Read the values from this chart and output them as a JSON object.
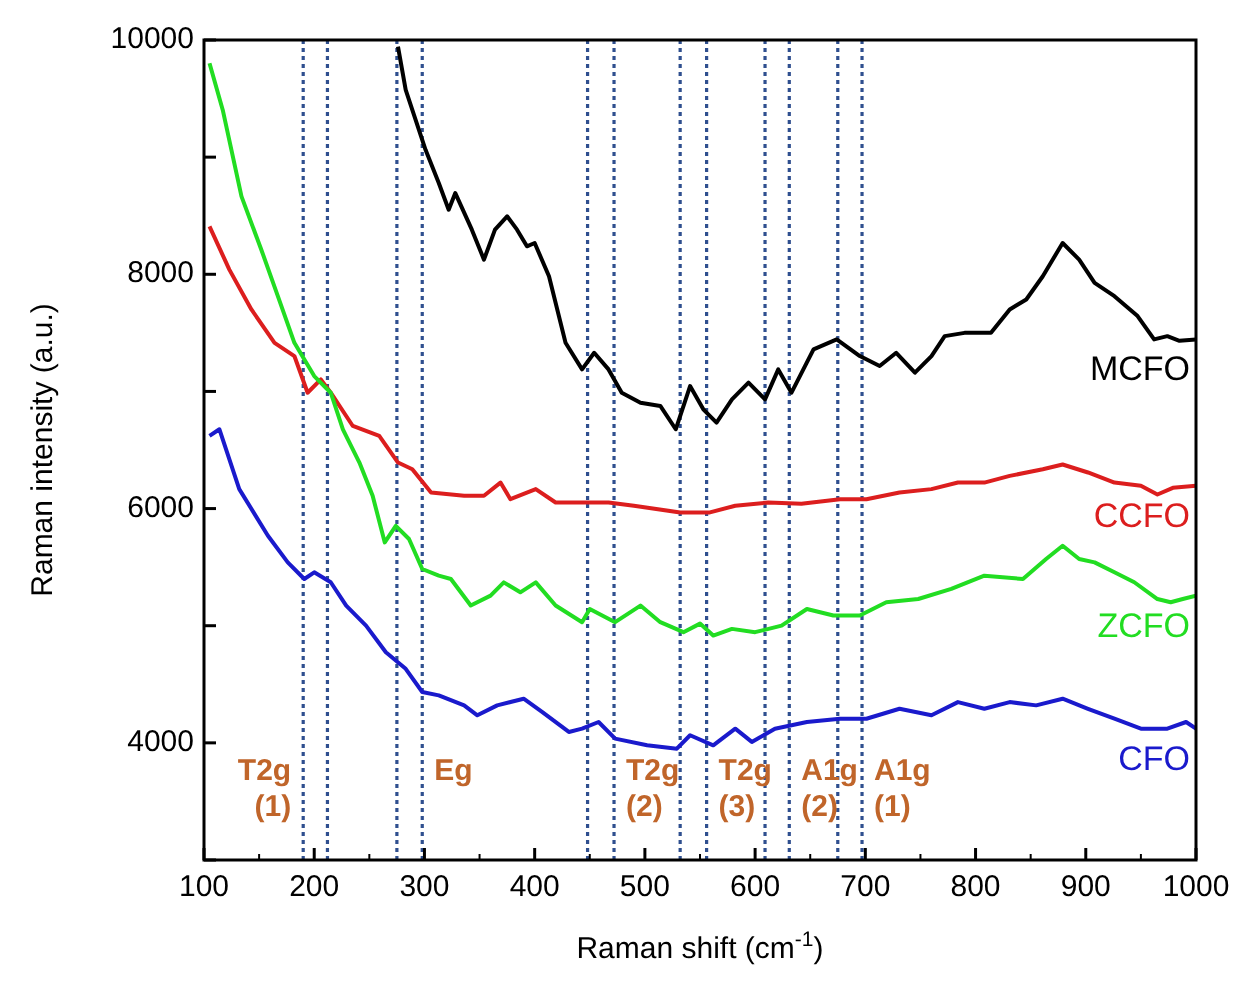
{
  "chart_data": {
    "type": "line",
    "xlabel": "Raman shift (cm$^{-1}$)",
    "ylabel": "Raman intensity (a.u.)",
    "xlim": [
      100,
      1000
    ],
    "xticks": [
      100,
      200,
      300,
      400,
      500,
      600,
      700,
      800,
      900,
      1000
    ],
    "ylim": [
      3000,
      10000
    ],
    "yticks": [
      {
        "value": 3000,
        "label": null
      },
      4000,
      {
        "value": 5000,
        "label": null
      },
      6000,
      {
        "value": 7000,
        "label": null
      },
      8000,
      {
        "value": 9000,
        "label": null
      },
      10000
    ],
    "grid": false,
    "legend": false,
    "marker": "none",
    "line_style": "solid",
    "series": [
      {
        "name": "MCFO",
        "color": "#000000",
        "x": [
          276,
          283,
          301,
          313,
          322,
          328,
          343,
          354,
          364,
          375,
          384,
          393,
          400,
          413,
          428,
          443,
          454,
          467,
          479,
          496,
          514,
          528,
          541,
          553,
          565,
          579,
          594,
          609,
          621,
          633,
          653,
          674,
          695,
          713,
          728,
          745,
          760,
          772,
          790,
          814,
          831,
          846,
          861,
          879,
          894,
          908,
          926,
          947,
          962,
          974,
          985,
          1000
        ],
        "values": [
          9943,
          9574,
          9063,
          8779,
          8551,
          8693,
          8381,
          8125,
          8381,
          8495,
          8381,
          8239,
          8267,
          7983,
          7415,
          7188,
          7330,
          7188,
          6989,
          6904,
          6876,
          6677,
          7046,
          6847,
          6734,
          6932,
          7075,
          6932,
          7188,
          6989,
          7359,
          7444,
          7302,
          7217,
          7330,
          7160,
          7302,
          7472,
          7500,
          7500,
          7700,
          7785,
          7983,
          8267,
          8125,
          7927,
          7813,
          7643,
          7444,
          7472,
          7432,
          7444
        ]
      },
      {
        "name": "CCFO",
        "color": "#dc1e1e",
        "x": [
          105,
          123,
          143,
          164,
          182,
          194,
          206,
          215,
          235,
          259,
          276,
          289,
          306,
          336,
          354,
          369,
          378,
          401,
          419,
          449,
          467,
          490,
          532,
          559,
          582,
          612,
          642,
          677,
          701,
          731,
          760,
          784,
          808,
          831,
          861,
          879,
          902,
          926,
          950,
          965,
          979,
          1000
        ],
        "values": [
          8409,
          8040,
          7700,
          7415,
          7302,
          6989,
          7103,
          6989,
          6705,
          6620,
          6393,
          6336,
          6137,
          6109,
          6109,
          6222,
          6080,
          6166,
          6052,
          6052,
          6052,
          6024,
          5967,
          5967,
          6024,
          6052,
          6041,
          6080,
          6080,
          6137,
          6166,
          6222,
          6222,
          6279,
          6336,
          6376,
          6308,
          6222,
          6194,
          6120,
          6177,
          6194
        ]
      },
      {
        "name": "ZCFO",
        "color": "#22dd22",
        "x": [
          105,
          117,
          134,
          152,
          167,
          182,
          200,
          215,
          226,
          241,
          253,
          264,
          274,
          286,
          298,
          313,
          324,
          342,
          360,
          372,
          387,
          401,
          419,
          443,
          450,
          473,
          496,
          514,
          535,
          550,
          562,
          579,
          600,
          624,
          647,
          671,
          695,
          719,
          748,
          778,
          808,
          843,
          864,
          879,
          894,
          908,
          926,
          944,
          965,
          977,
          988,
          1000
        ],
        "values": [
          9801,
          9403,
          8665,
          8210,
          7813,
          7415,
          7131,
          6989,
          6677,
          6393,
          6109,
          5711,
          5853,
          5740,
          5484,
          5427,
          5399,
          5172,
          5257,
          5370,
          5285,
          5370,
          5172,
          5030,
          5143,
          5030,
          5172,
          5030,
          4945,
          5018,
          4916,
          4973,
          4945,
          5001,
          5143,
          5087,
          5087,
          5200,
          5228,
          5314,
          5427,
          5399,
          5569,
          5683,
          5569,
          5541,
          5456,
          5371,
          5228,
          5200,
          5228,
          5257
        ]
      },
      {
        "name": "CFO",
        "color": "#1a1acc",
        "x": [
          105,
          114,
          132,
          158,
          176,
          191,
          200,
          215,
          229,
          247,
          265,
          283,
          298,
          313,
          336,
          348,
          366,
          390,
          407,
          431,
          443,
          458,
          473,
          502,
          529,
          541,
          562,
          582,
          597,
          618,
          647,
          677,
          701,
          731,
          760,
          784,
          808,
          831,
          855,
          879,
          902,
          926,
          950,
          974,
          991,
          1000
        ],
        "values": [
          6620,
          6677,
          6166,
          5768,
          5541,
          5399,
          5456,
          5371,
          5172,
          5001,
          4774,
          4632,
          4434,
          4405,
          4320,
          4235,
          4320,
          4377,
          4263,
          4093,
          4121,
          4178,
          4036,
          3979,
          3950,
          4065,
          3979,
          4121,
          4008,
          4121,
          4178,
          4206,
          4206,
          4291,
          4235,
          4348,
          4291,
          4348,
          4320,
          4377,
          4291,
          4206,
          4121,
          4121,
          4178,
          4121
        ]
      }
    ],
    "ref_lines": [
      {
        "axis": "x",
        "value": 190,
        "label": "T2g (1)",
        "color": "#2f4f8f",
        "line_style": "dotted"
      },
      {
        "axis": "x",
        "value": 212,
        "color": "#2f4f8f",
        "line_style": "dotted"
      },
      {
        "axis": "x",
        "value": 275,
        "color": "#2f4f8f",
        "line_style": "dotted"
      },
      {
        "axis": "x",
        "value": 298,
        "label": "Eg",
        "color": "#2f4f8f",
        "line_style": "dotted"
      },
      {
        "axis": "x",
        "value": 448,
        "color": "#2f4f8f",
        "line_style": "dotted"
      },
      {
        "axis": "x",
        "value": 472,
        "label": "T2g (2)",
        "color": "#2f4f8f",
        "line_style": "dotted"
      },
      {
        "axis": "x",
        "value": 532,
        "color": "#2f4f8f",
        "line_style": "dotted"
      },
      {
        "axis": "x",
        "value": 556,
        "label": "T2g (3)",
        "color": "#2f4f8f",
        "line_style": "dotted"
      },
      {
        "axis": "x",
        "value": 609,
        "color": "#2f4f8f",
        "line_style": "dotted"
      },
      {
        "axis": "x",
        "value": 631,
        "label": "A1g (2)",
        "color": "#2f4f8f",
        "line_style": "dotted"
      },
      {
        "axis": "x",
        "value": 675,
        "color": "#2f4f8f",
        "line_style": "dotted"
      },
      {
        "axis": "x",
        "value": 697,
        "label": "A1g (1)",
        "color": "#2f4f8f",
        "line_style": "dotted"
      }
    ]
  }
}
